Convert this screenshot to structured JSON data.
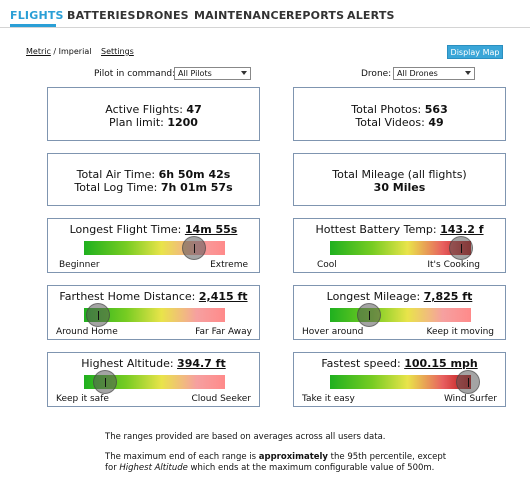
{
  "nav": {
    "tabs": [
      "FLIGHTS",
      "BATTERIES",
      "DRONES",
      "MAINTENANCE",
      "REPORTS",
      "ALERTS"
    ],
    "active": "FLIGHTS",
    "accent": "#2a9fd6"
  },
  "toplinks": {
    "metric": "Metric",
    "separator": " / ",
    "imperial": "Imperial",
    "settings": "Settings"
  },
  "display_map_label": "Display Map",
  "filters": {
    "pilot_label": "Pilot in command:",
    "pilot_value": "All Pilots",
    "drone_label": "Drone:",
    "drone_value": "All Drones"
  },
  "cards": {
    "active_flights_label": "Active Flights:",
    "active_flights": "47",
    "plan_limit_label": "Plan limit:",
    "plan_limit": "1200",
    "total_photos_label": "Total Photos:",
    "total_photos": "563",
    "total_videos_label": "Total Videos:",
    "total_videos": "49",
    "total_air_time_label": "Total Air Time:",
    "total_air_time": "6h 50m 42s",
    "total_log_time_label": "Total Log Time:",
    "total_log_time": "7h 01m 57s",
    "total_mileage_label": "Total Mileage (all flights)",
    "total_mileage": "30 Miles"
  },
  "gauges": [
    {
      "title": "Longest Flight Time:",
      "value": "14m 55s",
      "left": "Beginner",
      "right": "Extreme",
      "level": 0.78
    },
    {
      "title": "Hottest Battery Temp:",
      "value": "143.2 f",
      "left": "Cool",
      "right": "It's Cooking",
      "level": 0.93
    },
    {
      "title": "Farthest Home Distance:",
      "value": "2,415 ft",
      "left": "Around Home",
      "right": "Far Far Away",
      "level": 0.1
    },
    {
      "title": "Longest Mileage:",
      "value": "7,825 ft",
      "left": "Hover around",
      "right": "Keep it moving",
      "level": 0.28
    },
    {
      "title": "Highest Altitude:",
      "value": "394.7 ft",
      "left": "Keep it safe",
      "right": "Cloud Seeker",
      "level": 0.15
    },
    {
      "title": "Fastest speed:",
      "value": "100.15 mph",
      "left": "Take it easy",
      "right": "Wind Surfer",
      "level": 0.98
    }
  ],
  "notes": {
    "p1": "The ranges provided are based on averages across all users data.",
    "p2_a": "The maximum end of each range is ",
    "p2_b": "approximately",
    "p2_c": " the 95th percentile, except",
    "p2_d": "for ",
    "p2_e": "Highest Altitude",
    "p2_f": " which ends at the maximum configurable value of 500m."
  }
}
